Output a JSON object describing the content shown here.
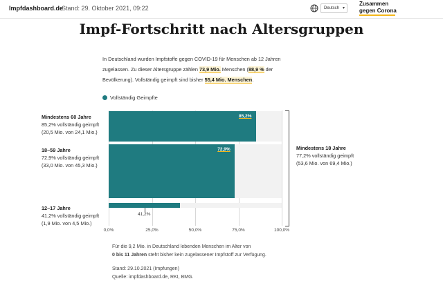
{
  "header": {
    "brand": "Impfdashboard.de",
    "stand": "Stand: 29. Oktober 2021, 09:22",
    "language": "Deutsch",
    "logo_line1": "Zusammen",
    "logo_line2": "gegen Corona"
  },
  "title": "Impf-Fortschritt nach Altersgruppen",
  "intro": {
    "p1": "In Deutschland wurden Impfstoffe gegen COVID-19 für Menschen ab 12 Jahren zugelassen. Zu dieser Altersgruppe zählen ",
    "h1": "73,9 Mio.",
    "p2": " Menschen (",
    "h2": "88,9 %",
    "p3": " der Bevölkerung). Vollständig geimpft sind bisher ",
    "h3": "55,4 Mio. Menschen",
    "p4": "."
  },
  "legend": {
    "label": "Vollständig Geimpfte"
  },
  "summary": {
    "title": "Mindestens 18 Jahre",
    "line1": "77,2% vollständig geimpft",
    "line2": "(53,6 Mio. von 69,4 Mio.)"
  },
  "footnote": {
    "line1": "Für die 9,2 Mio. in Deutschland lebenden Menschen im Alter von",
    "bold": "0 bis 11 Jahren",
    "line2": " steht bisher kein zugelassener Impfstoff zur Verfügung.",
    "stand": "Stand: 29.10.2021 (Impfungen)",
    "quelle": "Quelle: impfdashboard.de, RKI, BMG."
  },
  "colors": {
    "bar": "#1f7b80",
    "accent": "#f5b719",
    "track": "#f2f2f2"
  },
  "chart_data": {
    "type": "bar",
    "orientation": "horizontal",
    "categories": [
      "Mindestens 60 Jahre",
      "18–59 Jahre",
      "12–17 Jahre"
    ],
    "series": [
      {
        "name": "Vollständig Geimpfte",
        "values": [
          85.2,
          72.9,
          41.2
        ]
      }
    ],
    "value_labels": [
      "85,2%",
      "72,9%",
      "41,2%"
    ],
    "details": [
      [
        "85,2% vollständig geimpft",
        "(20,5 Mio. von 24,1 Mio.)"
      ],
      [
        "72,9% vollständig geimpft",
        "(33,0 Mio. von 45,3 Mio.)"
      ],
      [
        "41,2% vollständig geimpft",
        "(1,9 Mio. von 4,5 Mio.)"
      ]
    ],
    "xlim": [
      0,
      100
    ],
    "xticks": [
      "0,0%",
      "25,0%",
      "50,0%",
      "75,0%",
      "100,0%"
    ],
    "grid": true,
    "legend_position": "top-left"
  }
}
